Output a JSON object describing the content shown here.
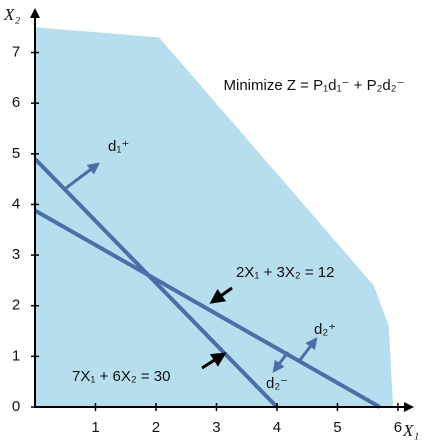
{
  "chart_data": {
    "type": "line",
    "title": "Minimize Z = P₁d₁⁻ + P₂d₂⁻",
    "x_label": "X₁",
    "y_label": "X₂",
    "xlim": [
      0,
      6.15
    ],
    "ylim": [
      0,
      7.8
    ],
    "xticks": [
      1,
      2,
      3,
      4,
      5,
      6
    ],
    "yticks": [
      0,
      1,
      2,
      3,
      4,
      5,
      6,
      7
    ],
    "region": {
      "color": "#b6deee",
      "x": [
        0,
        0.5,
        2.05,
        5.6,
        5.85,
        5.92,
        0
      ],
      "y": [
        7.5,
        7.45,
        7.3,
        2.4,
        1.6,
        0,
        0
      ]
    },
    "series": [
      {
        "name": "7X₁ + 6X₂ = 30",
        "color": "#4b6ea9",
        "x": [
          0,
          4
        ],
        "values": [
          4.9,
          0
        ]
      },
      {
        "name": "2X₁ + 3X₂ = 12",
        "color": "#4b6ea9",
        "x": [
          0,
          5.7
        ],
        "values": [
          3.88,
          0
        ]
      }
    ],
    "annotations": [
      "d₁⁺",
      "d₂⁺",
      "d₂⁻"
    ]
  }
}
